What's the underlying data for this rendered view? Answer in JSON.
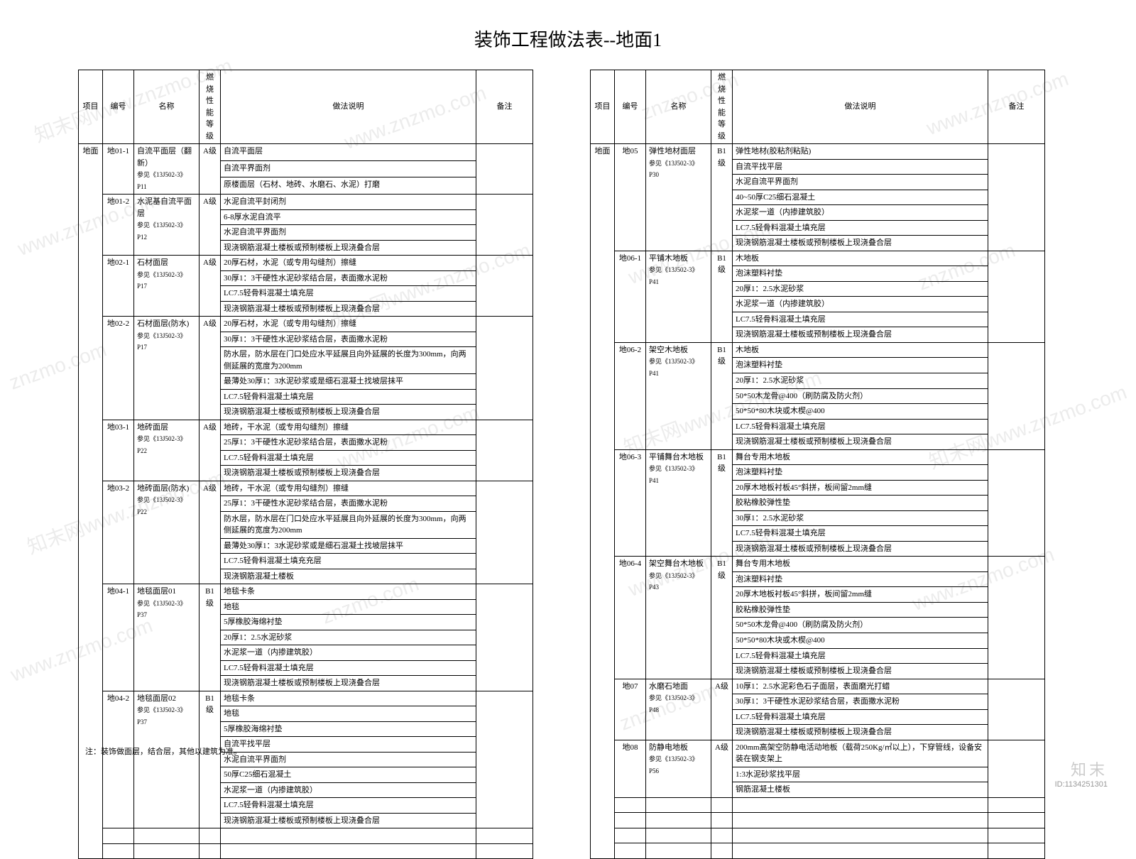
{
  "title": "装饰工程做法表--地面1",
  "headers": {
    "proj": "项目",
    "code": "编号",
    "name": "名称",
    "grade": "燃烧性\n能等级",
    "desc": "做法说明",
    "note": "备注"
  },
  "projectLabel": "地面",
  "leftRows": [
    {
      "code": "地01-1",
      "name": "自流平面层（翻新）",
      "ref": "参见《13J502-3》P11",
      "grade": "A级",
      "desc": [
        "自流平面层",
        "自流平界面剂",
        "原楼面层（石材、地砖、水磨石、水泥）打磨"
      ]
    },
    {
      "code": "地01-2",
      "name": "水泥基自流平面层",
      "ref": "参见《13J502-3》P12",
      "grade": "A级",
      "desc": [
        "水泥自流平封闭剂",
        "6-8厚水泥自流平",
        "水泥自流平界面剂",
        "现浇钢筋混凝土楼板或预制楼板上现浇叠合层"
      ]
    },
    {
      "code": "地02-1",
      "name": "石材面层",
      "ref": "参见《13J502-3》P17",
      "grade": "A级",
      "desc": [
        "20厚石材，水泥（或专用勾缝剂）擦缝",
        "30厚1：3干硬性水泥砂浆结合层，表面撒水泥粉",
        "LC7.5轻骨料混凝土填充层",
        "现浇钢筋混凝土楼板或预制楼板上现浇叠合层"
      ]
    },
    {
      "code": "地02-2",
      "name": "石材面层(防水)",
      "ref": "参见《13J502-3》P17",
      "grade": "A级",
      "desc": [
        "20厚石材，水泥（或专用勾缝剂）擦缝",
        "30厚1：3干硬性水泥砂浆结合层，表面撒水泥粉",
        "防水层，防水层在门口处应水平延展且向外延展的长度为300mm，向两侧延展的宽度为200mm",
        "最薄处30厚1：3水泥砂浆或是细石混凝土找坡层抹平",
        "LC7.5轻骨料混凝土填充层",
        "现浇钢筋混凝土楼板或预制楼板上现浇叠合层"
      ]
    },
    {
      "code": "地03-1",
      "name": "地砖面层",
      "ref": "参见《13J502-3》P22",
      "grade": "A级",
      "desc": [
        "地砖，干水泥（或专用勾缝剂）擦缝",
        "25厚1：3干硬性水泥砂浆结合层，表面撒水泥粉",
        "LC7.5轻骨料混凝土填充层",
        "现浇钢筋混凝土楼板或预制楼板上现浇叠合层"
      ]
    },
    {
      "code": "地03-2",
      "name": "地砖面层(防水)",
      "ref": "参见《13J502-3》P22",
      "grade": "A级",
      "desc": [
        "地砖，干水泥（或专用勾缝剂）擦缝",
        "25厚1：3干硬性水泥砂浆结合层，表面撒水泥粉",
        "防水层，防水层在门口处应水平延展且向外延展的长度为300mm，向两侧延展的宽度为200mm",
        "最薄处30厚1：3水泥砂浆或是细石混凝土找坡层抹平",
        "LC7.5轻骨料混凝土填充充层",
        "现浇钢筋混凝土楼板"
      ]
    },
    {
      "code": "地04-1",
      "name": "地毯面层01",
      "ref": "参见《13J502-3》P37",
      "grade": "B1级",
      "desc": [
        "地毯卡条",
        "地毯",
        "5厚橡胶海绵衬垫",
        "20厚1：2.5水泥砂浆",
        "水泥浆一道（内掺建筑胶）",
        "LC7.5轻骨料混凝土填充层",
        "现浇钢筋混凝土楼板或预制楼板上现浇叠合层"
      ]
    },
    {
      "code": "地04-2",
      "name": "地毯面层02",
      "ref": "参见《13J502-3》P37",
      "grade": "B1级",
      "desc": [
        "地毯卡条",
        "地毯",
        "5厚橡胶海绵衬垫",
        "自流平找平层",
        "水泥自流平界面剂",
        "50厚C25细石混凝土",
        "水泥浆一道（内掺建筑胶）",
        "LC7.5轻骨料混凝土填充层",
        "现浇钢筋混凝土楼板或预制楼板上现浇叠合层"
      ]
    }
  ],
  "rightRows": [
    {
      "code": "地05",
      "name": "弹性地材面层",
      "ref": "参见《13J502-3》P30",
      "grade": "B1级",
      "desc": [
        "弹性地材(胶粘剂粘贴)",
        "自流平找平层",
        "水泥自流平界面剂",
        "40~50厚C25细石混凝土",
        "水泥浆一道（内掺建筑胶）",
        "LC7.5轻骨料混凝土填充层",
        "现浇钢筋混凝土楼板或预制楼板上现浇叠合层"
      ]
    },
    {
      "code": "地06-1",
      "name": "平铺木地板",
      "ref": "参见《13J502-3》P41",
      "grade": "B1级",
      "desc": [
        "木地板",
        "泡沫塑料衬垫",
        "20厚1：2.5水泥砂浆",
        "水泥浆一道（内掺建筑胶）",
        "LC7.5轻骨料混凝土填充层",
        "现浇钢筋混凝土楼板或预制楼板上现浇叠合层"
      ]
    },
    {
      "code": "地06-2",
      "name": "架空木地板",
      "ref": "参见《13J502-3》P41",
      "grade": "B1级",
      "desc": [
        "木地板",
        "泡沫塑料衬垫",
        "20厚1：2.5水泥砂浆",
        "50*50木龙骨@400（刷防腐及防火剂）",
        "50*50*80木块或木楔@400",
        "LC7.5轻骨料混凝土填充层",
        "现浇钢筋混凝土楼板或预制楼板上现浇叠合层"
      ]
    },
    {
      "code": "地06-3",
      "name": "平铺舞台木地板",
      "ref": "参见《13J502-3》P41",
      "grade": "B1级",
      "desc": [
        "舞台专用木地板",
        "泡沫塑料衬垫",
        "20厚木地板衬板45°斜拼，板间留2mm缝",
        "胶粘橡胶弹性垫",
        "30厚1：2.5水泥砂浆",
        "LC7.5轻骨料混凝土填充层",
        "现浇钢筋混凝土楼板或预制楼板上现浇叠合层"
      ]
    },
    {
      "code": "地06-4",
      "name": "架空舞台木地板",
      "ref": "参见《13J502-3》P43",
      "grade": "B1级",
      "desc": [
        "舞台专用木地板",
        "泡沫塑料衬垫",
        "20厚木地板衬板45°斜拼，板间留2mm缝",
        "胶粘橡胶弹性垫",
        "50*50木龙骨@400（刷防腐及防火剂）",
        "50*50*80木块或木楔@400",
        "LC7.5轻骨料混凝土填充层",
        "现浇钢筋混凝土楼板或预制楼板上现浇叠合层"
      ]
    },
    {
      "code": "地07",
      "name": "水磨石地面",
      "ref": "参见《13J502-3》P48",
      "grade": "A级",
      "desc": [
        "10厚1：2.5水泥彩色石子面层，表面磨光打蜡",
        "30厚1：3干硬性水泥砂浆结合层，表面撒水泥粉",
        "LC7.5轻骨料混凝土填充层",
        "现浇钢筋混凝土楼板或预制楼板上现浇叠合层"
      ]
    },
    {
      "code": "地08",
      "name": "防静电地板",
      "ref": "参见《13J502-3》P56",
      "grade": "A级",
      "desc": [
        "200mm高架空防静电活动地板（载荷250Kg/㎡以上），下穿管线，设备安装在钢支架上",
        "1:3水泥砂浆找平层",
        "钢筋混凝土楼板"
      ]
    }
  ],
  "footnote": "注：装饰做面层，结合层，其他以建筑为准。",
  "footer": {
    "logo": "知末",
    "id": "ID:1134251301"
  }
}
